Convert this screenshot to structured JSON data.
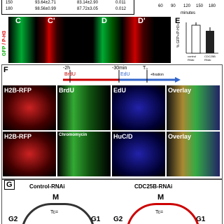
{
  "table": {
    "rows": [
      [
        "150",
        "93.64±2.71",
        "83.14±2.90",
        "0.011"
      ],
      [
        "180",
        "98.56±0.99",
        "87.72±3.05",
        "0.012"
      ]
    ]
  },
  "time_axis": {
    "ticks": [
      "60",
      "90",
      "120",
      "150",
      "180"
    ],
    "label": "minutes"
  },
  "stain_label": {
    "green": "GFP",
    "red": "/ P-H3"
  },
  "panel_labels": [
    "C",
    "C'",
    "D",
    "D'",
    "E"
  ],
  "panel_e": {
    "y_label": "% GFP+/P-H3+",
    "categories": [
      "control RNAi",
      "CDC25B RNAi"
    ]
  },
  "panel_f": {
    "label": "F",
    "times": [
      "-2h",
      "-30min",
      "T₀"
    ],
    "steps": [
      "BrdU",
      "EdU",
      "+fixation"
    ],
    "rows": [
      [
        "H2B-RFP",
        "BrdU",
        "EdU",
        "Overlay"
      ],
      [
        "H2B-RFP",
        "Chromomycin",
        "HuC/D",
        "Overlay"
      ]
    ]
  },
  "panel_g": {
    "label": "G",
    "conditions": [
      {
        "title": "Control-RNAi",
        "m": "M",
        "g2": "G2",
        "g1": "G1",
        "tc": "Tc="
      },
      {
        "title": "CDC25B-RNAi",
        "m": "M",
        "g2": "G2",
        "g1": "G1",
        "tc": "Tc="
      }
    ]
  }
}
